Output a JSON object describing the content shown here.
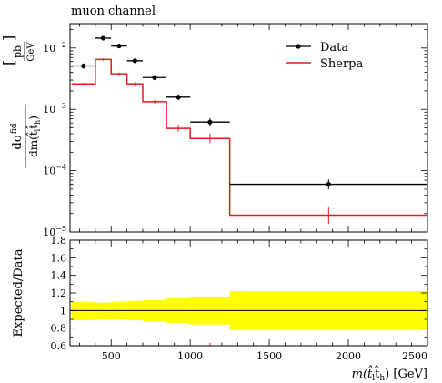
{
  "chart_data": {
    "type": "line",
    "title": "muon channel",
    "legend_position": "top-right",
    "main": {
      "ylabel": "dσfid / dm(t̂l t̂h)  [pb / GeV]",
      "ylabel_parts": {
        "num": "dσ",
        "num_sup": "fid",
        "den": "dm(t̂",
        "den_sub1": "l",
        "den_mid": "t̂",
        "den_sub2": "h",
        "den_end": ")",
        "unit_num": "pb",
        "unit_den": "GeV"
      },
      "yscale": "log",
      "ylim": [
        1e-05,
        0.025
      ],
      "xlim": [
        240,
        2500
      ],
      "yticks": [
        {
          "value": 1e-05,
          "base": "10",
          "exp": "−5"
        },
        {
          "value": 0.0001,
          "base": "10",
          "exp": "−4"
        },
        {
          "value": 0.001,
          "base": "10",
          "exp": "−3"
        },
        {
          "value": 0.01,
          "base": "10",
          "exp": "−2"
        }
      ],
      "series": [
        {
          "name": "Data",
          "color": "#000000",
          "style": "points",
          "bins": [
            {
              "lo": 250,
              "hi": 400,
              "y": 0.0051,
              "err_lo": 0.0046,
              "err_hi": 0.0056
            },
            {
              "lo": 400,
              "hi": 500,
              "y": 0.0145,
              "err_lo": 0.0136,
              "err_hi": 0.0154
            },
            {
              "lo": 500,
              "hi": 600,
              "y": 0.0108,
              "err_lo": 0.0101,
              "err_hi": 0.0115
            },
            {
              "lo": 600,
              "hi": 700,
              "y": 0.0062,
              "err_lo": 0.0057,
              "err_hi": 0.0067
            },
            {
              "lo": 700,
              "hi": 850,
              "y": 0.0033,
              "err_lo": 0.003,
              "err_hi": 0.0036
            },
            {
              "lo": 850,
              "hi": 1000,
              "y": 0.00158,
              "err_lo": 0.00141,
              "err_hi": 0.00175
            },
            {
              "lo": 1000,
              "hi": 1250,
              "y": 0.00062,
              "err_lo": 0.00053,
              "err_hi": 0.00072
            },
            {
              "lo": 1250,
              "hi": 2500,
              "y": 6e-05,
              "err_lo": 5e-05,
              "err_hi": 7.2e-05
            }
          ]
        },
        {
          "name": "Sherpa",
          "color": "#e41a1c",
          "style": "histogram",
          "bins": [
            {
              "lo": 250,
              "hi": 400,
              "y": 0.0026
            },
            {
              "lo": 400,
              "hi": 500,
              "y": 0.0065
            },
            {
              "lo": 500,
              "hi": 600,
              "y": 0.0038
            },
            {
              "lo": 600,
              "hi": 700,
              "y": 0.0026
            },
            {
              "lo": 700,
              "hi": 850,
              "y": 0.00133
            },
            {
              "lo": 850,
              "hi": 1000,
              "y": 0.00049
            },
            {
              "lo": 1000,
              "hi": 1250,
              "y": 0.000335
            },
            {
              "lo": 1250,
              "hi": 2500,
              "y": 1.88e-05
            }
          ],
          "errors": [
            {
              "x": 325,
              "lo": 0.0025,
              "hi": 0.0027
            },
            {
              "x": 450,
              "lo": 0.0062,
              "hi": 0.0068
            },
            {
              "x": 550,
              "lo": 0.0036,
              "hi": 0.004
            },
            {
              "x": 650,
              "lo": 0.00245,
              "hi": 0.00275
            },
            {
              "x": 775,
              "lo": 0.00124,
              "hi": 0.00142
            },
            {
              "x": 925,
              "lo": 0.00043,
              "hi": 0.00056
            },
            {
              "x": 1125,
              "lo": 0.00028,
              "hi": 0.0004
            },
            {
              "x": 1875,
              "lo": 1.35e-05,
              "hi": 2.6e-05
            }
          ]
        }
      ]
    },
    "ratio": {
      "ylabel": "Expected/Data",
      "ylim": [
        0.6,
        1.8
      ],
      "yticks": [
        "0.6",
        "0.8",
        "1",
        "1.2",
        "1.4",
        "1.6",
        "1.8"
      ],
      "band_color": "#ffff00",
      "band": [
        {
          "lo": 250,
          "hi": 400,
          "down": 0.89,
          "up": 1.1
        },
        {
          "lo": 400,
          "hi": 500,
          "down": 0.9,
          "up": 1.09
        },
        {
          "lo": 500,
          "hi": 600,
          "down": 0.9,
          "up": 1.1
        },
        {
          "lo": 600,
          "hi": 700,
          "down": 0.89,
          "up": 1.11
        },
        {
          "lo": 700,
          "hi": 850,
          "down": 0.88,
          "up": 1.12
        },
        {
          "lo": 850,
          "hi": 1000,
          "down": 0.86,
          "up": 1.14
        },
        {
          "lo": 1000,
          "hi": 1250,
          "down": 0.84,
          "up": 1.16
        },
        {
          "lo": 1250,
          "hi": 2500,
          "down": 0.78,
          "up": 1.22
        }
      ],
      "reference": 1.0
    },
    "x": {
      "label_prefix": "m(t̂",
      "label_sub1": "l",
      "label_mid": "t̂",
      "label_sub2": "h",
      "label_suffix": ") [GeV]",
      "ticks": [
        "500",
        "1000",
        "1500",
        "2000",
        "2500"
      ]
    }
  }
}
